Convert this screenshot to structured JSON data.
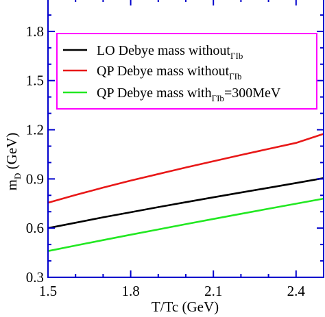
{
  "chart_data": {
    "type": "line",
    "xlabel": "T/Tc (GeV)",
    "ylabel_main": "m",
    "ylabel_sub": "D",
    "ylabel_tail": " (GeV)",
    "xlim": [
      1.5,
      2.5
    ],
    "ylim": [
      0.3,
      2.0
    ],
    "xticks": [
      {
        "value": 1.5,
        "label": "1.5"
      },
      {
        "value": 1.8,
        "label": "1.8"
      },
      {
        "value": 2.1,
        "label": "2.1"
      },
      {
        "value": 2.4,
        "label": "2.4"
      }
    ],
    "yticks": [
      {
        "value": 0.3,
        "label": "0.3"
      },
      {
        "value": 0.6,
        "label": "0.6"
      },
      {
        "value": 0.9,
        "label": "0.9"
      },
      {
        "value": 1.2,
        "label": "1.2"
      },
      {
        "value": 1.5,
        "label": "1.5"
      },
      {
        "value": 1.8,
        "label": "1.8"
      }
    ],
    "series": [
      {
        "color": "#000000",
        "legend_main": "LO Debye mass without",
        "legend_sub": "Γ",
        "legend_sub2": "Ib",
        "legend_tail": "",
        "x": [
          1.5,
          1.6,
          1.7,
          1.8,
          1.9,
          2.0,
          2.1,
          2.2,
          2.3,
          2.4,
          2.5
        ],
        "y": [
          0.6,
          0.633,
          0.666,
          0.697,
          0.728,
          0.758,
          0.788,
          0.817,
          0.846,
          0.875,
          0.905
        ]
      },
      {
        "color": "#e81818",
        "legend_main": "QP Debye mass without",
        "legend_sub": "Γ",
        "legend_sub2": "Ib",
        "legend_tail": "",
        "x": [
          1.5,
          1.6,
          1.7,
          1.8,
          1.9,
          2.0,
          2.1,
          2.2,
          2.3,
          2.4,
          2.5
        ],
        "y": [
          0.755,
          0.802,
          0.847,
          0.89,
          0.93,
          0.97,
          1.008,
          1.046,
          1.083,
          1.12,
          1.175
        ]
      },
      {
        "color": "#22e822",
        "legend_main": "QP Debye mass with",
        "legend_sub": "Γ",
        "legend_sub2": "Ib",
        "legend_tail": "=300MeV",
        "x": [
          1.5,
          1.6,
          1.7,
          1.8,
          1.9,
          2.0,
          2.1,
          2.2,
          2.3,
          2.4,
          2.5
        ],
        "y": [
          0.46,
          0.494,
          0.527,
          0.56,
          0.592,
          0.624,
          0.656,
          0.687,
          0.718,
          0.749,
          0.78
        ]
      }
    ],
    "legend_position": "upper-left",
    "grid": false,
    "colors": {
      "axes": "#0000cc",
      "legend_border": "#ff00ff"
    }
  }
}
